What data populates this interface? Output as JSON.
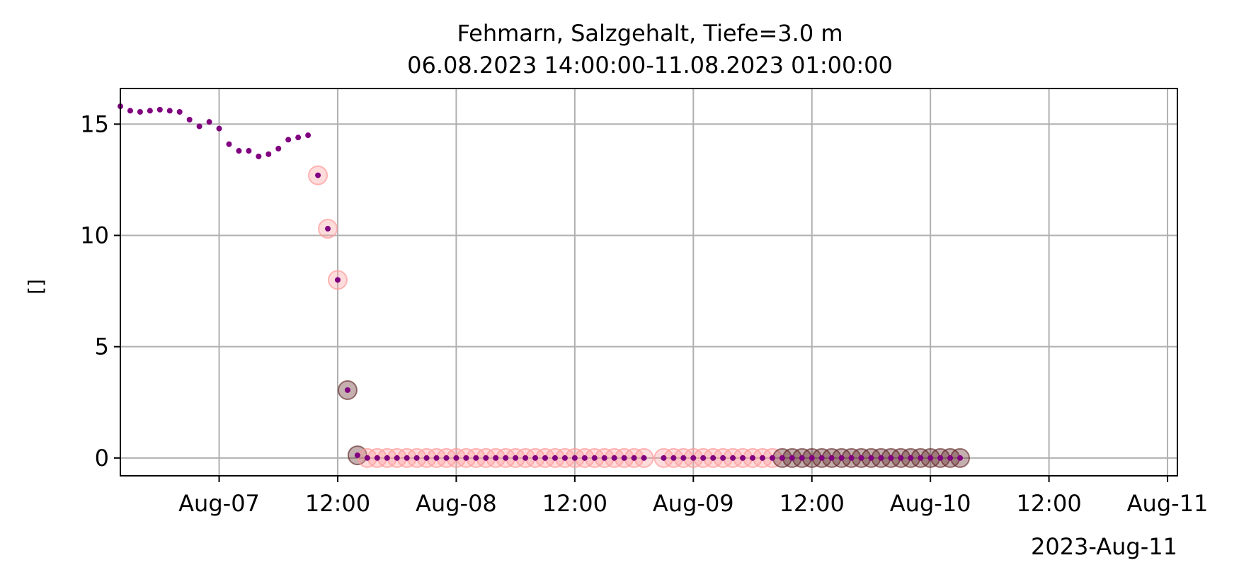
{
  "chart_data": {
    "type": "scatter",
    "title": "Fehmarn, Salzgehalt, Tiefe=3.0 m",
    "subtitle": "06.08.2023 14:00:00-11.08.2023 01:00:00",
    "xlabel": "",
    "ylabel": "[]",
    "date_label": "2023-Aug-11",
    "xlim": [
      "2023-08-06 14:00",
      "2023-08-11 01:00"
    ],
    "ylim": [
      -0.8,
      16.6
    ],
    "grid": true,
    "x_ticks": [
      {
        "value": "2023-08-07 00:00",
        "label": "Aug-07"
      },
      {
        "value": "2023-08-07 12:00",
        "label": "12:00"
      },
      {
        "value": "2023-08-08 00:00",
        "label": "Aug-08"
      },
      {
        "value": "2023-08-08 12:00",
        "label": "12:00"
      },
      {
        "value": "2023-08-09 00:00",
        "label": "Aug-09"
      },
      {
        "value": "2023-08-09 12:00",
        "label": "12:00"
      },
      {
        "value": "2023-08-10 00:00",
        "label": "Aug-10"
      },
      {
        "value": "2023-08-10 12:00",
        "label": "12:00"
      },
      {
        "value": "2023-08-11 00:00",
        "label": "Aug-11"
      }
    ],
    "y_ticks": [
      {
        "value": 0,
        "label": "0"
      },
      {
        "value": 5,
        "label": "5"
      },
      {
        "value": 10,
        "label": "10"
      },
      {
        "value": 15,
        "label": "15"
      }
    ],
    "colors": {
      "point": "#800080",
      "flag_pink": "#ff9a9a",
      "flag_dark": "#5a1c1c",
      "grid": "#b0b0b0"
    },
    "series": [
      {
        "marker": "point",
        "points": [
          [
            "2023-08-06 14:00",
            15.8
          ],
          [
            "2023-08-06 15:00",
            15.6
          ],
          [
            "2023-08-06 16:00",
            15.55
          ],
          [
            "2023-08-06 17:00",
            15.6
          ],
          [
            "2023-08-06 18:00",
            15.65
          ],
          [
            "2023-08-06 19:00",
            15.6
          ],
          [
            "2023-08-06 20:00",
            15.55
          ],
          [
            "2023-08-06 21:00",
            15.2
          ],
          [
            "2023-08-06 22:00",
            14.9
          ],
          [
            "2023-08-06 23:00",
            15.1
          ],
          [
            "2023-08-07 00:00",
            14.8
          ],
          [
            "2023-08-07 01:00",
            14.1
          ],
          [
            "2023-08-07 02:00",
            13.8
          ],
          [
            "2023-08-07 03:00",
            13.8
          ],
          [
            "2023-08-07 04:00",
            13.55
          ],
          [
            "2023-08-07 05:00",
            13.65
          ],
          [
            "2023-08-07 06:00",
            13.9
          ],
          [
            "2023-08-07 07:00",
            14.3
          ],
          [
            "2023-08-07 08:00",
            14.4
          ],
          [
            "2023-08-07 09:00",
            14.5
          ]
        ]
      },
      {
        "marker": "flag-pink",
        "points": [
          [
            "2023-08-07 10:00",
            12.7
          ],
          [
            "2023-08-07 11:00",
            10.3
          ],
          [
            "2023-08-07 12:00",
            8.0
          ]
        ]
      },
      {
        "marker": "flag-dark",
        "points": [
          [
            "2023-08-07 13:00",
            3.05
          ],
          [
            "2023-08-07 14:00",
            0.12
          ]
        ]
      },
      {
        "marker": "flag-pink",
        "x_range": [
          "2023-08-07 15:00",
          "2023-08-08 19:00"
        ],
        "x_step_hours": 1,
        "y": 0.0
      },
      {
        "marker": "flag-pink",
        "x_range": [
          "2023-08-08 21:00",
          "2023-08-09 08:00"
        ],
        "x_step_hours": 1,
        "y": 0.0
      },
      {
        "marker": "flag-dark",
        "x_range": [
          "2023-08-09 09:00",
          "2023-08-10 03:00"
        ],
        "x_step_hours": 1,
        "y": 0.0
      }
    ]
  }
}
